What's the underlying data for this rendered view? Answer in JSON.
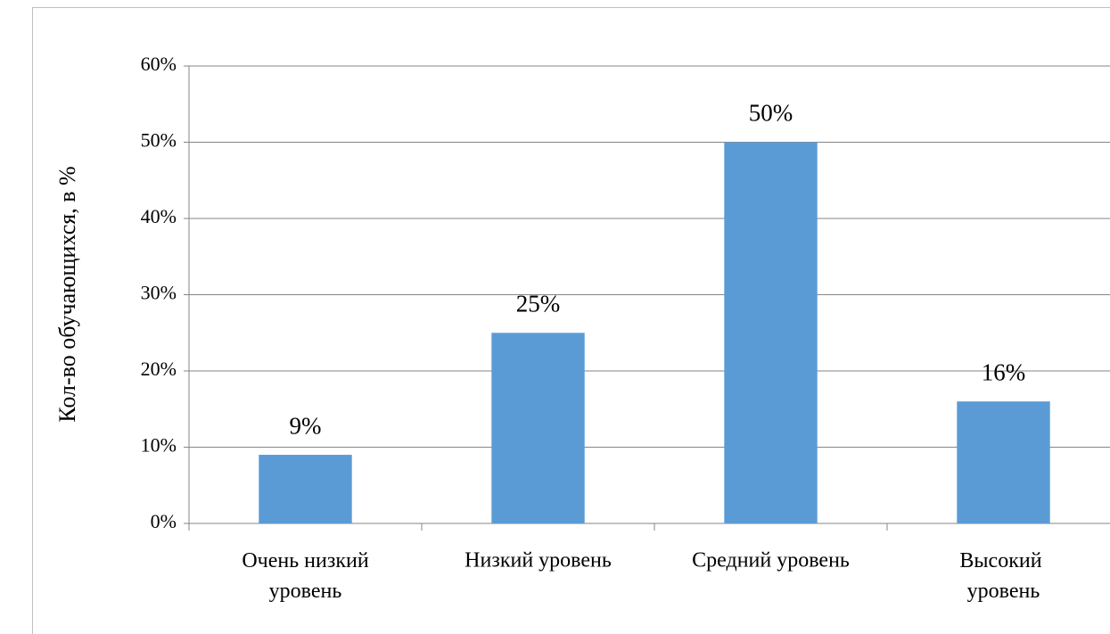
{
  "chart_data": {
    "type": "bar",
    "y_label": "Кол-во обучающихся,  в %",
    "categories": [
      "Очень низкий уровень",
      "Низкий уровень",
      "Средний уровень",
      "Высокий  уровень"
    ],
    "values": [
      9,
      25,
      50,
      16
    ],
    "value_labels": [
      "9%",
      "25%",
      "50%",
      "16%"
    ],
    "color": "#5b9bd5",
    "ylim": [
      0,
      60
    ],
    "yticks": [
      {
        "value": 0,
        "label": "0%"
      },
      {
        "value": 10,
        "label": "10%"
      },
      {
        "value": 20,
        "label": "20%"
      },
      {
        "value": 30,
        "label": "30%"
      },
      {
        "value": 40,
        "label": "40%"
      },
      {
        "value": 50,
        "label": "50%"
      },
      {
        "value": 60,
        "label": "60%"
      }
    ],
    "grid": true
  }
}
